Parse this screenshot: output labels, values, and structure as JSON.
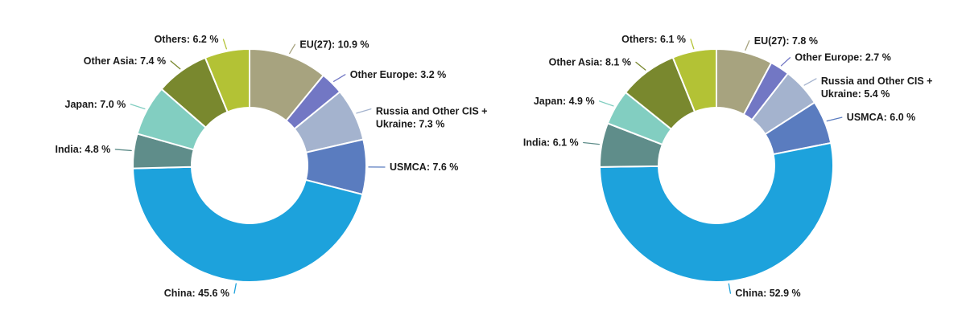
{
  "page": {
    "background": "#ffffff",
    "text_color": "#1a1a1a"
  },
  "chart_data": [
    {
      "type": "pie",
      "subtype": "donut",
      "position": "left",
      "title": "",
      "legend_position": "none",
      "direction": "clockwise",
      "start_angle_deg": 0,
      "label_format": "Name: value %",
      "slices": [
        {
          "name": "EU(27)",
          "value": 10.9,
          "label_lines": [
            "EU(27): 10.9 %"
          ],
          "color": "#a7a37f"
        },
        {
          "name": "Other Europe",
          "value": 3.2,
          "label_lines": [
            "Other Europe: 3.2 %"
          ],
          "color": "#7277c4"
        },
        {
          "name": "Russia and Other CIS + Ukraine",
          "value": 7.3,
          "label_lines": [
            "Russia and Other CIS +",
            "Ukraine: 7.3 %"
          ],
          "color": "#a4b3ce"
        },
        {
          "name": "USMCA",
          "value": 7.6,
          "label_lines": [
            "USMCA: 7.6 %"
          ],
          "color": "#5a7cbf"
        },
        {
          "name": "China",
          "value": 45.6,
          "label_lines": [
            "China: 45.6 %"
          ],
          "color": "#1da2dc"
        },
        {
          "name": "India",
          "value": 4.8,
          "label_lines": [
            "India: 4.8 %"
          ],
          "color": "#5f8d8a"
        },
        {
          "name": "Japan",
          "value": 7.0,
          "label_lines": [
            "Japan: 7.0 %"
          ],
          "color": "#82cec1"
        },
        {
          "name": "Other Asia",
          "value": 7.4,
          "label_lines": [
            "Other Asia: 7.4 %"
          ],
          "color": "#79882e"
        },
        {
          "name": "Others",
          "value": 6.2,
          "label_lines": [
            "Others: 6.2 %"
          ],
          "color": "#b3c235"
        }
      ]
    },
    {
      "type": "pie",
      "subtype": "donut",
      "position": "right",
      "title": "",
      "legend_position": "none",
      "direction": "clockwise",
      "start_angle_deg": 0,
      "label_format": "Name: value %",
      "slices": [
        {
          "name": "EU(27)",
          "value": 7.8,
          "label_lines": [
            "EU(27): 7.8 %"
          ],
          "color": "#a7a37f"
        },
        {
          "name": "Other Europe",
          "value": 2.7,
          "label_lines": [
            "Other Europe: 2.7 %"
          ],
          "color": "#7277c4"
        },
        {
          "name": "Russia and Other CIS + Ukraine",
          "value": 5.4,
          "label_lines": [
            "Russia and Other CIS +",
            "Ukraine: 5.4 %"
          ],
          "color": "#a4b3ce"
        },
        {
          "name": "USMCA",
          "value": 6.0,
          "label_lines": [
            "USMCA: 6.0 %"
          ],
          "color": "#5a7cbf"
        },
        {
          "name": "China",
          "value": 52.9,
          "label_lines": [
            "China: 52.9 %"
          ],
          "color": "#1da2dc"
        },
        {
          "name": "India",
          "value": 6.1,
          "label_lines": [
            "India: 6.1 %"
          ],
          "color": "#5f8d8a"
        },
        {
          "name": "Japan",
          "value": 4.9,
          "label_lines": [
            "Japan: 4.9 %"
          ],
          "color": "#82cec1"
        },
        {
          "name": "Other Asia",
          "value": 8.1,
          "label_lines": [
            "Other Asia: 8.1 %"
          ],
          "color": "#79882e"
        },
        {
          "name": "Others",
          "value": 6.1,
          "label_lines": [
            "Others: 6.1 %"
          ],
          "color": "#b3c235"
        }
      ]
    }
  ]
}
